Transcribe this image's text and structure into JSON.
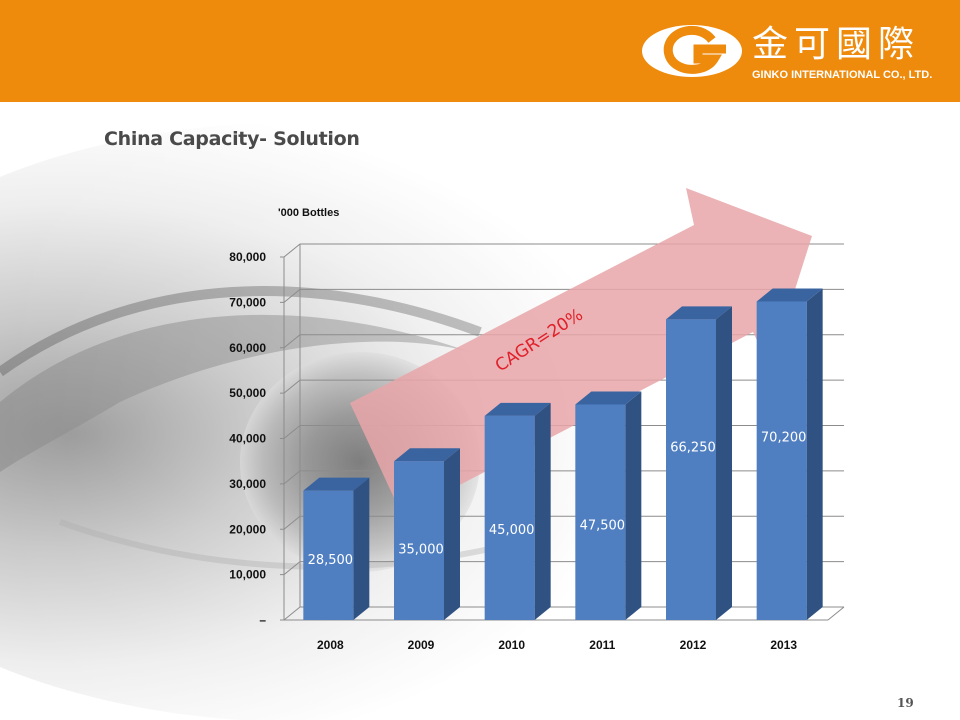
{
  "header": {
    "logo_chinese": "金可國際",
    "logo_english": "GINKO INTERNATIONAL CO., LTD."
  },
  "slide": {
    "title": "China Capacity- Solution",
    "page_number": "19"
  },
  "colors": {
    "header": "#ee8a0c",
    "bar_front": "#4f7ec1",
    "bar_side": "#2f5282",
    "bar_top": "#3a64a0",
    "arrow": "#e8a6a8",
    "annotation": "#e0202a"
  },
  "chart_data": {
    "type": "bar",
    "unit_label": "'000 Bottles",
    "categories": [
      "2008",
      "2009",
      "2010",
      "2011",
      "2012",
      "2013"
    ],
    "values": [
      28500,
      35000,
      45000,
      47500,
      66250,
      70200
    ],
    "data_labels": [
      "28,500",
      "35,000",
      "45,000",
      "47,500",
      "66,250",
      "70,200"
    ],
    "y_ticks": [
      0,
      10000,
      20000,
      30000,
      40000,
      50000,
      60000,
      70000,
      80000
    ],
    "y_tick_labels": [
      "–",
      "10,000",
      "20,000",
      "30,000",
      "40,000",
      "50,000",
      "60,000",
      "70,000",
      "80,000"
    ],
    "ylim": [
      0,
      80000
    ],
    "grid": true,
    "style": "3d",
    "annotation": "CAGR=20%"
  }
}
